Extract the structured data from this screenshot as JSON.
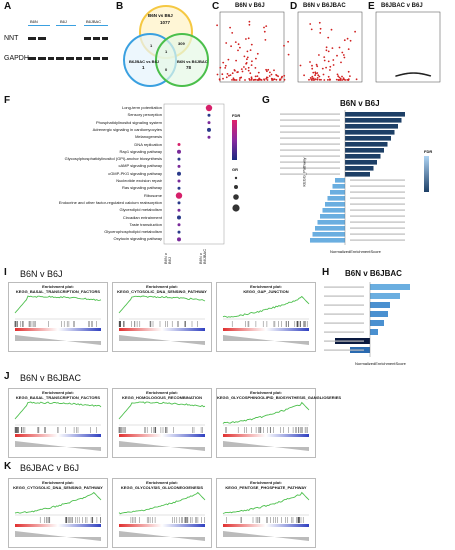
{
  "panels": {
    "A": {
      "letter": "A",
      "bands": [
        "NNT",
        "GAPDH"
      ],
      "groups": [
        "B6N",
        "B6J",
        "B6JBAC"
      ]
    },
    "B": {
      "letter": "B",
      "sets": [
        "B6N vs B6J",
        "B6N vs B6JBAC",
        "B6JBAC vs B6J"
      ],
      "counts": {
        "n1": "1077",
        "n2": "78",
        "n3": "1",
        "i12": "309",
        "i13": "1",
        "i23": "0",
        "all": "1"
      }
    },
    "C": {
      "letter": "C",
      "title": "B6N v B6J"
    },
    "D": {
      "letter": "D",
      "title": "B6N v B6JBAC"
    },
    "E": {
      "letter": "E",
      "title": "B6JBAC v B6J"
    },
    "F": {
      "letter": "F",
      "terms": [
        "Long-term potentiation",
        "Sensory perception",
        "Phosphatidylinositol signaling system",
        "Adrenergic signaling in cardiomyocytes",
        "Melanogenesis",
        "DNA replication",
        "Rap1 signaling pathway",
        "Glycosylphosphatidylinositol (GPI)-anchor biosynthesis",
        "cAMP signaling pathway",
        "cGMP-PKG signaling pathway",
        "Nucleotide excision repair",
        "Ras signaling pathway",
        "Ribosome",
        "Endocrine and other factor-regulated calcium reabsorption",
        "Glycerolipid metabolism",
        "Circadian entrainment",
        "Taste transduction",
        "Glycerophospholipid metabolism",
        "Oxytocin signaling pathway"
      ],
      "fdr_label": "FDR",
      "gr_label": "GR",
      "xcats": [
        "B6N v B6J",
        "B6N v B6JBAC"
      ]
    },
    "G": {
      "letter": "G",
      "title": "B6N v B6J",
      "ylabel": "KEGG_Pathway",
      "xlabel": "NormalizedEnrichmentScore",
      "fdr_label": "FDR"
    },
    "H": {
      "letter": "H",
      "title": "B6N v B6JBAC",
      "ylabel": "KEGG_Pathway",
      "xlabel": "NormalizedEnrichmentScore"
    },
    "I": {
      "letter": "I",
      "title": "B6N v B6J",
      "plots": [
        "KEGG_BASAL_TRANSCRIPTION_FACTORS",
        "KEGG_CYTOSOLIC_DNA_SENSING_PATHWAY",
        "KEGG_GAP_JUNCTION"
      ]
    },
    "J": {
      "letter": "J",
      "title": "B6N v B6JBAC",
      "plots": [
        "KEGG_BASAL_TRANSCRIPTION_FACTORS",
        "KEGG_HOMOLOGOUS_RECOMBINATION",
        "KEGG_GLYCOSPHINGOLIPID_BIOSYNTHESIS_GANGLIOSERIES"
      ]
    },
    "K": {
      "letter": "K",
      "title": "B6JBAC v B6J",
      "plots": [
        "KEGG_CYTOSOLIC_DNA_SENSING_PATHWAY",
        "KEGG_GLYCOLYSIS_GLUCONEOGENESIS",
        "KEGG_PENTOSE_PHOSPHATE_PATHWAY"
      ]
    }
  },
  "gsea_header": "Enrichment plot:",
  "colors": {
    "venn1": "#f5c842",
    "venn2": "#3aa0e0",
    "venn3": "#4bbf4b",
    "bar_dark": "#1d3f66",
    "bar_light": "#6aaee0",
    "green": "#4fc04f"
  }
}
